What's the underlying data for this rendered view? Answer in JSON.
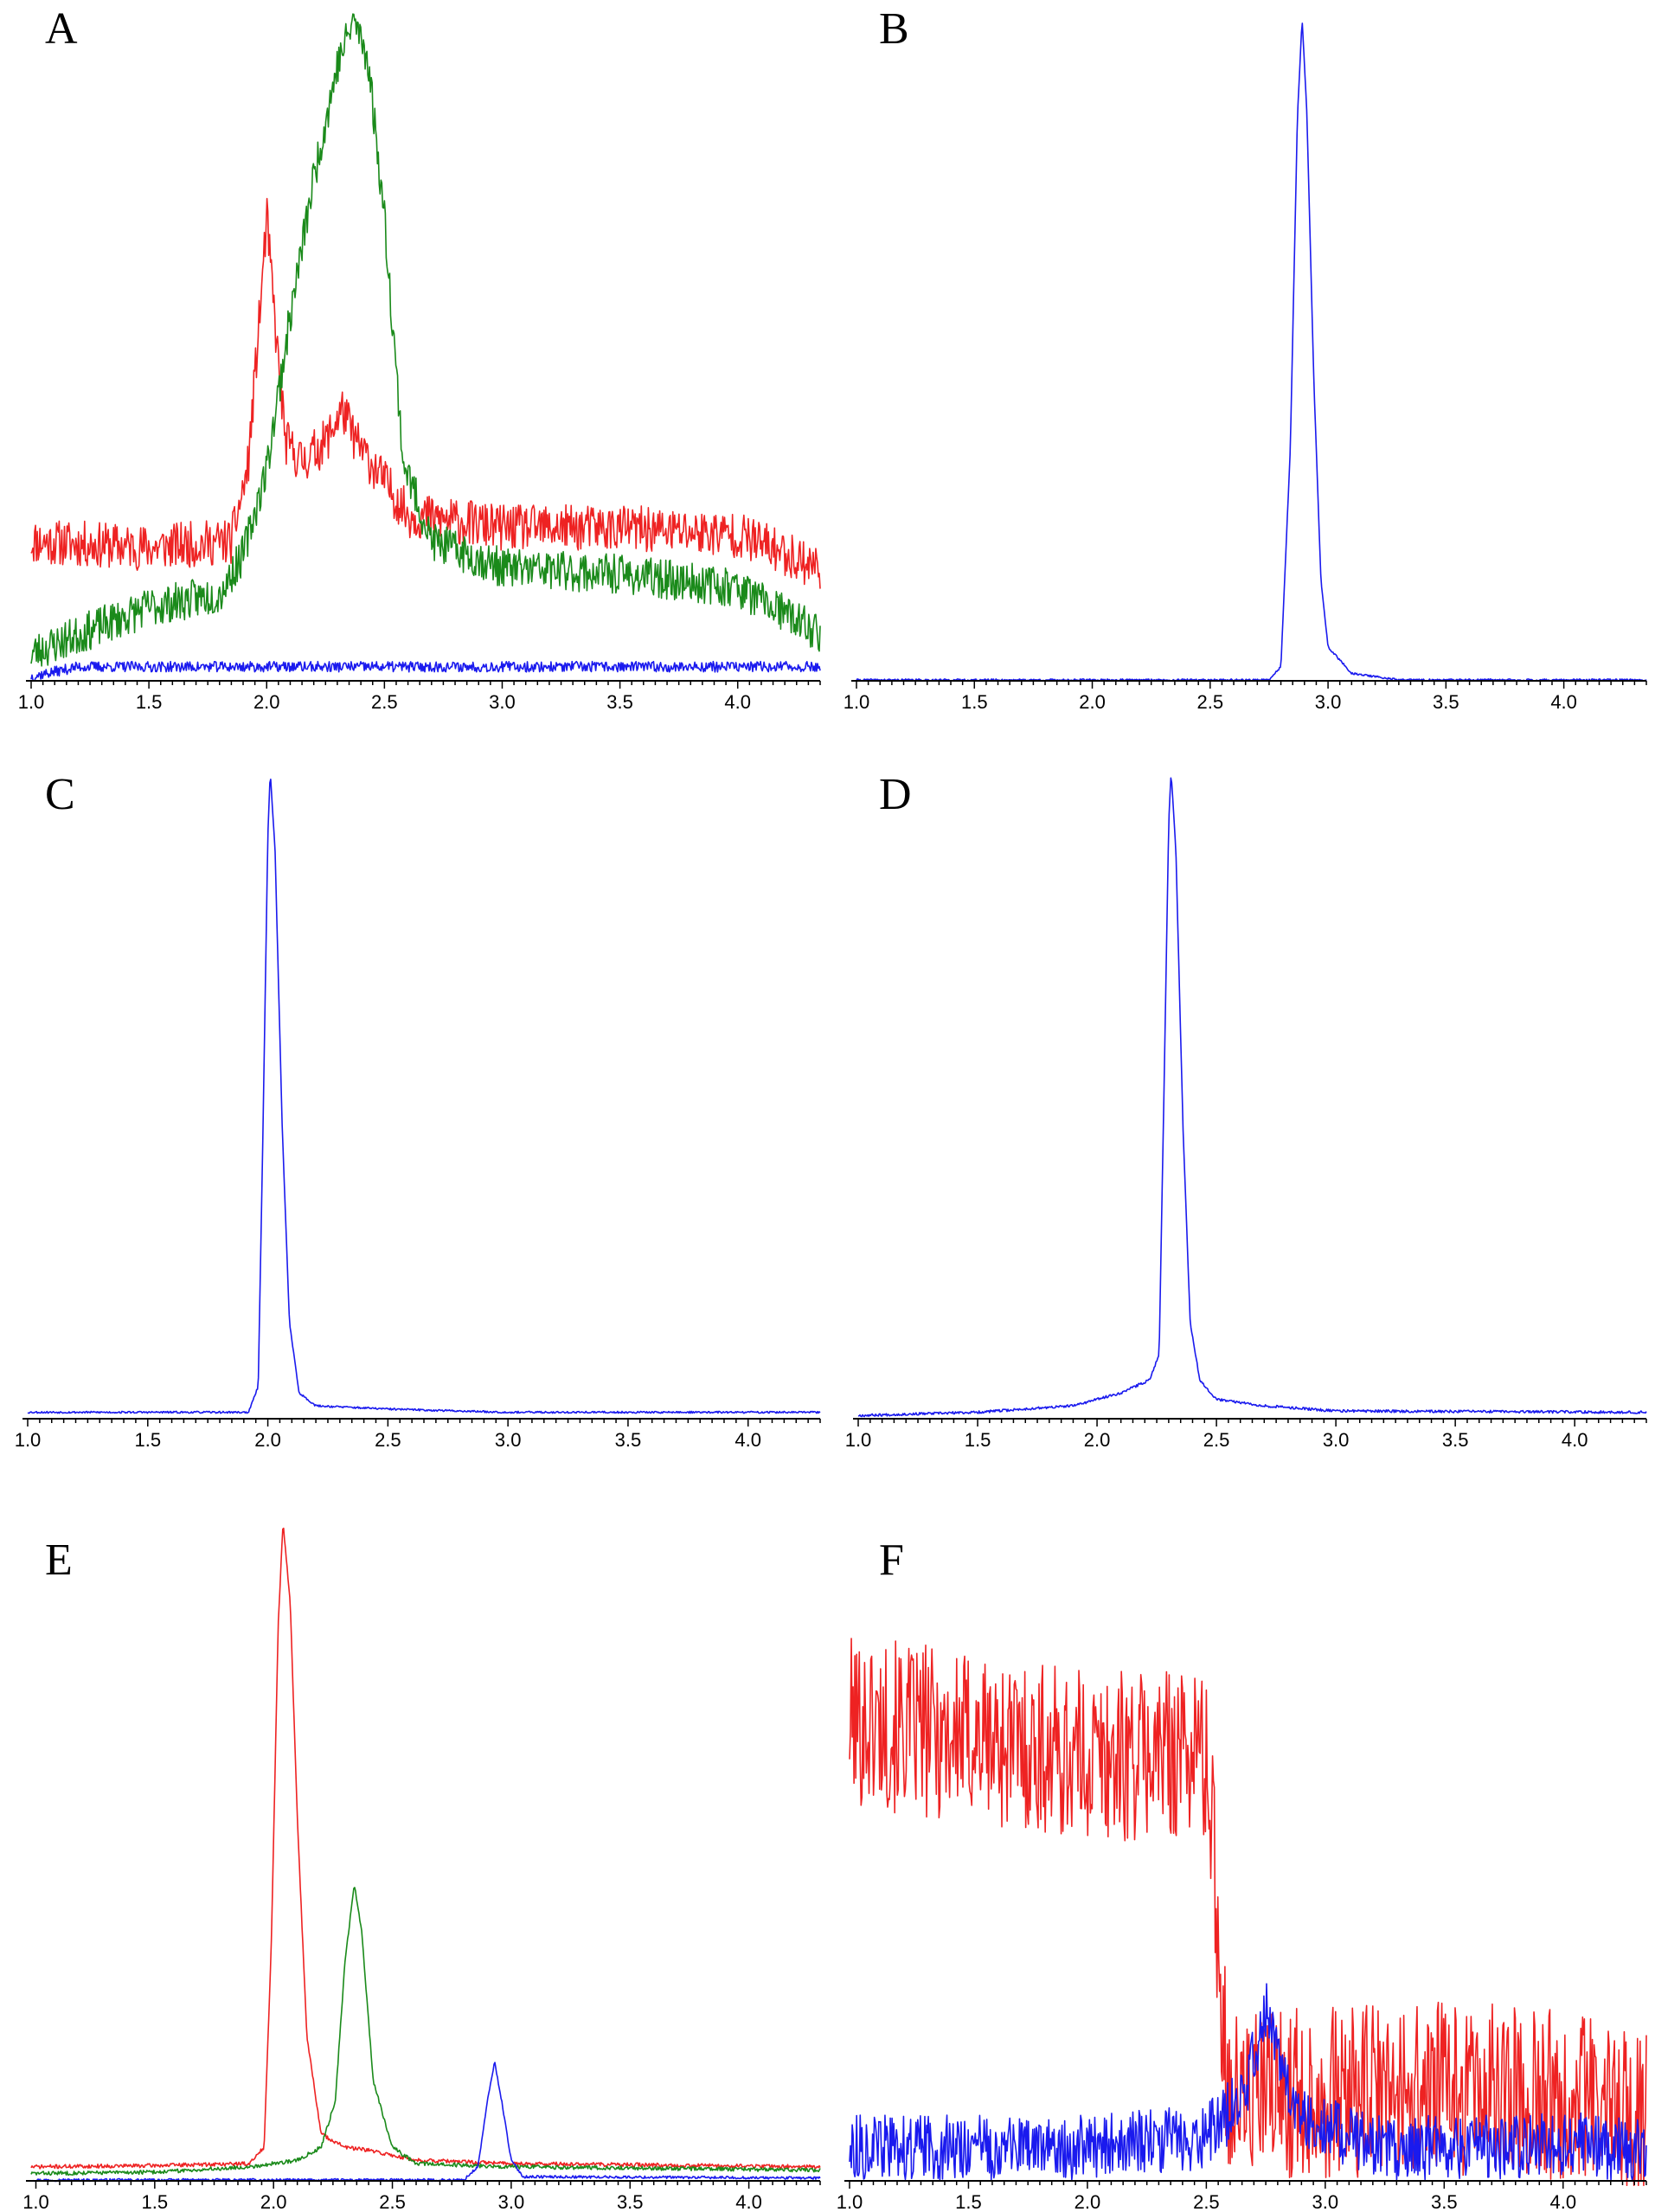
{
  "figure": {
    "layout": "3x2 grid of chromatogram panels"
  },
  "colors": {
    "red": "#ee2222",
    "green": "#1a8a1a",
    "blue": "#1a1aee"
  },
  "chart_data": [
    {
      "panel": "A",
      "type": "line",
      "x_ticks": [
        "1.0",
        "1.5",
        "2.0",
        "2.5",
        "3.0",
        "3.5",
        "4.0"
      ],
      "xlim": [
        1.0,
        4.35
      ],
      "ylim": [
        0,
        1
      ],
      "grid": false,
      "series": [
        {
          "color": "red",
          "noise": 0.035,
          "seed": 11,
          "points": [
            [
              1.0,
              0.21
            ],
            [
              1.5,
              0.2
            ],
            [
              1.85,
              0.21
            ],
            [
              1.92,
              0.32
            ],
            [
              1.97,
              0.55
            ],
            [
              2.0,
              0.7
            ],
            [
              2.04,
              0.52
            ],
            [
              2.08,
              0.36
            ],
            [
              2.15,
              0.33
            ],
            [
              2.25,
              0.36
            ],
            [
              2.32,
              0.41
            ],
            [
              2.38,
              0.36
            ],
            [
              2.5,
              0.3
            ],
            [
              2.6,
              0.25
            ],
            [
              3.0,
              0.23
            ],
            [
              3.5,
              0.23
            ],
            [
              4.0,
              0.22
            ],
            [
              4.35,
              0.17
            ]
          ]
        },
        {
          "color": "green",
          "noise": 0.03,
          "seed": 23,
          "points": [
            [
              1.0,
              0.04
            ],
            [
              1.5,
              0.11
            ],
            [
              1.8,
              0.13
            ],
            [
              1.9,
              0.19
            ],
            [
              2.0,
              0.32
            ],
            [
              2.1,
              0.55
            ],
            [
              2.2,
              0.76
            ],
            [
              2.3,
              0.93
            ],
            [
              2.37,
              1.0
            ],
            [
              2.43,
              0.94
            ],
            [
              2.5,
              0.7
            ],
            [
              2.58,
              0.33
            ],
            [
              2.7,
              0.21
            ],
            [
              3.0,
              0.17
            ],
            [
              3.5,
              0.16
            ],
            [
              4.0,
              0.14
            ],
            [
              4.35,
              0.07
            ]
          ]
        },
        {
          "color": "blue",
          "noise": 0.008,
          "seed": 37,
          "points": [
            [
              1.0,
              0.005
            ],
            [
              1.2,
              0.02
            ],
            [
              4.35,
              0.02
            ]
          ]
        }
      ]
    },
    {
      "panel": "B",
      "type": "line",
      "x_ticks": [
        "1.0",
        "1.5",
        "2.0",
        "2.5",
        "3.0",
        "3.5",
        "4.0"
      ],
      "xlim": [
        1.0,
        4.35
      ],
      "ylim": [
        0,
        1
      ],
      "grid": false,
      "series": [
        {
          "color": "blue",
          "noise": 0.0015,
          "seed": 41,
          "points": [
            [
              1.0,
              0.0
            ],
            [
              2.75,
              0.0
            ],
            [
              2.8,
              0.02
            ],
            [
              2.84,
              0.35
            ],
            [
              2.87,
              0.85
            ],
            [
              2.89,
              1.0
            ],
            [
              2.91,
              0.86
            ],
            [
              2.94,
              0.45
            ],
            [
              2.97,
              0.15
            ],
            [
              3.0,
              0.05
            ],
            [
              3.1,
              0.01
            ],
            [
              3.3,
              0.0
            ],
            [
              4.35,
              0.0
            ]
          ]
        }
      ]
    },
    {
      "panel": "C",
      "type": "line",
      "x_ticks": [
        "1.0",
        "1.5",
        "2.0",
        "2.5",
        "3.0",
        "3.5",
        "4.0"
      ],
      "xlim": [
        1.0,
        4.3
      ],
      "ylim": [
        0,
        1
      ],
      "grid": false,
      "series": [
        {
          "color": "blue",
          "noise": 0.0015,
          "seed": 53,
          "points": [
            [
              1.0,
              0.01
            ],
            [
              1.92,
              0.01
            ],
            [
              1.96,
              0.05
            ],
            [
              1.98,
              0.45
            ],
            [
              2.0,
              0.9
            ],
            [
              2.01,
              1.0
            ],
            [
              2.03,
              0.88
            ],
            [
              2.06,
              0.45
            ],
            [
              2.09,
              0.15
            ],
            [
              2.13,
              0.04
            ],
            [
              2.2,
              0.02
            ],
            [
              2.5,
              0.015
            ],
            [
              3.0,
              0.01
            ],
            [
              4.3,
              0.01
            ]
          ]
        }
      ]
    },
    {
      "panel": "D",
      "type": "line",
      "x_ticks": [
        "1.0",
        "1.5",
        "2.0",
        "2.5",
        "3.0",
        "3.5",
        "4.0"
      ],
      "xlim": [
        1.0,
        4.3
      ],
      "ylim": [
        0,
        1
      ],
      "grid": false,
      "series": [
        {
          "color": "blue",
          "noise": 0.002,
          "seed": 67,
          "points": [
            [
              1.0,
              0.005
            ],
            [
              1.5,
              0.01
            ],
            [
              1.9,
              0.02
            ],
            [
              2.1,
              0.04
            ],
            [
              2.22,
              0.06
            ],
            [
              2.26,
              0.1
            ],
            [
              2.28,
              0.5
            ],
            [
              2.3,
              0.92
            ],
            [
              2.31,
              1.0
            ],
            [
              2.33,
              0.88
            ],
            [
              2.36,
              0.45
            ],
            [
              2.39,
              0.15
            ],
            [
              2.43,
              0.06
            ],
            [
              2.5,
              0.03
            ],
            [
              2.7,
              0.02
            ],
            [
              3.0,
              0.012
            ],
            [
              4.3,
              0.01
            ]
          ]
        }
      ]
    },
    {
      "panel": "E",
      "type": "line",
      "x_ticks": [
        "1.0",
        "1.5",
        "2.0",
        "2.5",
        "3.0",
        "3.5",
        "4.0"
      ],
      "xlim": [
        0.98,
        4.3
      ],
      "ylim": [
        0,
        1
      ],
      "grid": false,
      "series": [
        {
          "color": "red",
          "noise": 0.003,
          "seed": 71,
          "points": [
            [
              0.98,
              0.02
            ],
            [
              1.5,
              0.022
            ],
            [
              1.9,
              0.025
            ],
            [
              1.96,
              0.05
            ],
            [
              1.99,
              0.35
            ],
            [
              2.02,
              0.85
            ],
            [
              2.04,
              1.0
            ],
            [
              2.07,
              0.88
            ],
            [
              2.1,
              0.55
            ],
            [
              2.14,
              0.22
            ],
            [
              2.2,
              0.07
            ],
            [
              2.3,
              0.05
            ],
            [
              2.4,
              0.045
            ],
            [
              2.6,
              0.03
            ],
            [
              3.0,
              0.025
            ],
            [
              4.3,
              0.02
            ]
          ]
        },
        {
          "color": "green",
          "noise": 0.003,
          "seed": 83,
          "points": [
            [
              0.98,
              0.01
            ],
            [
              1.5,
              0.012
            ],
            [
              1.9,
              0.02
            ],
            [
              2.1,
              0.03
            ],
            [
              2.2,
              0.05
            ],
            [
              2.26,
              0.12
            ],
            [
              2.3,
              0.33
            ],
            [
              2.34,
              0.45
            ],
            [
              2.37,
              0.38
            ],
            [
              2.42,
              0.15
            ],
            [
              2.5,
              0.05
            ],
            [
              2.6,
              0.025
            ],
            [
              3.0,
              0.02
            ],
            [
              4.3,
              0.015
            ]
          ]
        },
        {
          "color": "blue",
          "noise": 0.002,
          "seed": 97,
          "points": [
            [
              0.98,
              0.0
            ],
            [
              2.8,
              0.0
            ],
            [
              2.86,
              0.02
            ],
            [
              2.9,
              0.12
            ],
            [
              2.93,
              0.18
            ],
            [
              2.96,
              0.12
            ],
            [
              3.0,
              0.03
            ],
            [
              3.05,
              0.005
            ],
            [
              4.3,
              0.003
            ]
          ]
        }
      ]
    },
    {
      "panel": "F",
      "type": "line",
      "x_ticks": [
        "1.0",
        "1.5",
        "2.0",
        "2.5",
        "3.0",
        "3.5",
        "4.0"
      ],
      "xlim": [
        1.0,
        4.35
      ],
      "ylim": [
        0,
        1
      ],
      "grid": false,
      "series": [
        {
          "color": "red",
          "noise": 0.16,
          "seed": 101,
          "points": [
            [
              1.0,
              0.85
            ],
            [
              1.5,
              0.82
            ],
            [
              2.0,
              0.78
            ],
            [
              2.3,
              0.79
            ],
            [
              2.48,
              0.8
            ],
            [
              2.52,
              0.7
            ],
            [
              2.56,
              0.35
            ],
            [
              2.6,
              0.15
            ],
            [
              2.8,
              0.16
            ],
            [
              3.0,
              0.16
            ],
            [
              3.5,
              0.17
            ],
            [
              4.0,
              0.16
            ],
            [
              4.35,
              0.12
            ]
          ]
        },
        {
          "color": "blue",
          "noise": 0.06,
          "seed": 113,
          "points": [
            [
              1.0,
              0.06
            ],
            [
              2.0,
              0.06
            ],
            [
              2.5,
              0.08
            ],
            [
              2.65,
              0.15
            ],
            [
              2.72,
              0.26
            ],
            [
              2.76,
              0.32
            ],
            [
              2.8,
              0.22
            ],
            [
              2.9,
              0.12
            ],
            [
              3.2,
              0.06
            ],
            [
              3.8,
              0.06
            ],
            [
              4.0,
              0.07
            ],
            [
              4.35,
              0.05
            ]
          ]
        }
      ]
    }
  ]
}
